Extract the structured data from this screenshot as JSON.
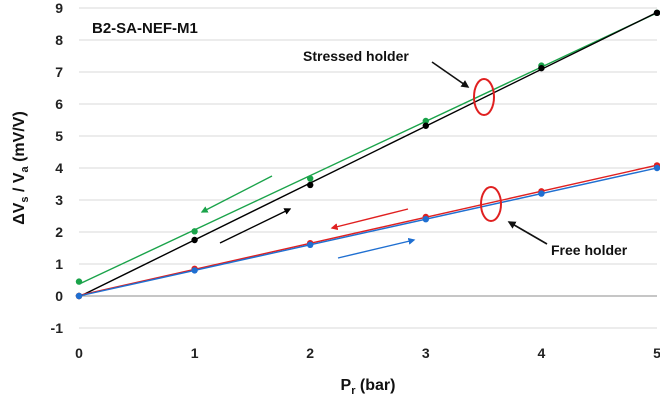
{
  "chart_data": {
    "type": "line",
    "title": "B2-SA-NEF-M1",
    "xlabel_main": "P",
    "xlabel_sub": "r",
    "xlabel_suffix": " (bar)",
    "ylabel_parts": {
      "delta": "ΔV",
      "sub1": "s",
      "mid": " / V",
      "sub2": "a",
      "suffix": " (mV/V)"
    },
    "xlim": [
      0,
      5
    ],
    "ylim": [
      -1,
      9
    ],
    "x_ticks": [
      "0",
      "1",
      "2",
      "3",
      "4",
      "5"
    ],
    "y_ticks": [
      "-1",
      "0",
      "1",
      "2",
      "3",
      "4",
      "5",
      "6",
      "7",
      "8",
      "9"
    ],
    "grid": "horizontal",
    "series": [
      {
        "color": "#1aa34a",
        "x": [
          0,
          1,
          2,
          3,
          4,
          5
        ],
        "y": [
          0.45,
          2.02,
          3.67,
          5.47,
          7.2,
          8.85
        ]
      },
      {
        "color": "#000000",
        "x": [
          0,
          1,
          2,
          3,
          4,
          5
        ],
        "y": [
          0.0,
          1.75,
          3.47,
          5.32,
          7.12,
          8.85
        ]
      },
      {
        "color": "#e02020",
        "x": [
          0,
          1,
          2,
          3,
          4,
          5
        ],
        "y": [
          0.0,
          0.85,
          1.65,
          2.47,
          3.27,
          4.08
        ]
      },
      {
        "color": "#1f6fd1",
        "x": [
          0,
          1,
          2,
          3,
          4,
          5
        ],
        "y": [
          0.0,
          0.8,
          1.6,
          2.4,
          3.2,
          4.0
        ]
      }
    ],
    "annotations": {
      "stressed": "Stressed holder",
      "free": "Free holder"
    }
  }
}
